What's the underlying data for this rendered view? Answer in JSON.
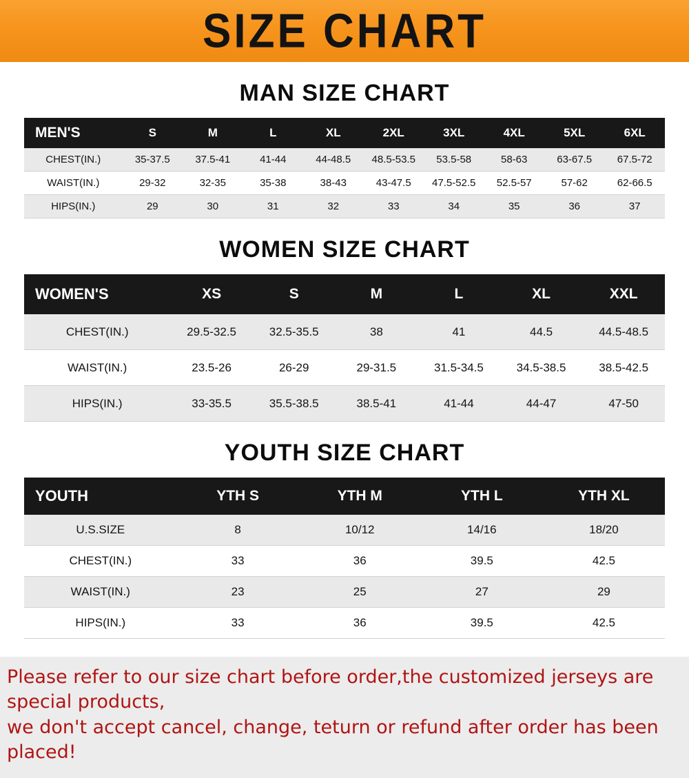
{
  "banner": {
    "title": "SIZE CHART",
    "bg_color": "#f7941d",
    "text_color": "#131313"
  },
  "chart_data": [
    {
      "id": "men",
      "type": "table",
      "title": "MAN SIZE CHART",
      "columns": [
        "MEN'S",
        "S",
        "M",
        "L",
        "XL",
        "2XL",
        "3XL",
        "4XL",
        "5XL",
        "6XL"
      ],
      "rows": [
        [
          "CHEST(IN.)",
          "35-37.5",
          "37.5-41",
          "41-44",
          "44-48.5",
          "48.5-53.5",
          "53.5-58",
          "58-63",
          "63-67.5",
          "67.5-72"
        ],
        [
          "WAIST(IN.)",
          "29-32",
          "32-35",
          "35-38",
          "38-43",
          "43-47.5",
          "47.5-52.5",
          "52.5-57",
          "57-62",
          "62-66.5"
        ],
        [
          "HIPS(IN.)",
          "29",
          "30",
          "31",
          "32",
          "33",
          "34",
          "35",
          "36",
          "37"
        ]
      ]
    },
    {
      "id": "women",
      "type": "table",
      "title": "WOMEN SIZE CHART",
      "columns": [
        "WOMEN'S",
        "XS",
        "S",
        "M",
        "L",
        "XL",
        "XXL"
      ],
      "rows": [
        [
          "CHEST(IN.)",
          "29.5-32.5",
          "32.5-35.5",
          "38",
          "41",
          "44.5",
          "44.5-48.5"
        ],
        [
          "WAIST(IN.)",
          "23.5-26",
          "26-29",
          "29-31.5",
          "31.5-34.5",
          "34.5-38.5",
          "38.5-42.5"
        ],
        [
          "HIPS(IN.)",
          "33-35.5",
          "35.5-38.5",
          "38.5-41",
          "41-44",
          "44-47",
          "47-50"
        ]
      ]
    },
    {
      "id": "youth",
      "type": "table",
      "title": "YOUTH SIZE CHART",
      "columns": [
        "YOUTH",
        "YTH S",
        "YTH M",
        "YTH L",
        "YTH XL"
      ],
      "rows": [
        [
          "U.S.SIZE",
          "8",
          "10/12",
          "14/16",
          "18/20"
        ],
        [
          "CHEST(IN.)",
          "33",
          "36",
          "39.5",
          "42.5"
        ],
        [
          "WAIST(IN.)",
          "23",
          "25",
          "27",
          "29"
        ],
        [
          "HIPS(IN.)",
          "33",
          "36",
          "39.5",
          "42.5"
        ]
      ]
    }
  ],
  "footer": {
    "line1": "Please refer to our size chart before order,the customized jerseys are special products,",
    "line2": "we don't accept cancel, change, teturn or refund after order has been placed!",
    "text_color": "#b11414"
  }
}
